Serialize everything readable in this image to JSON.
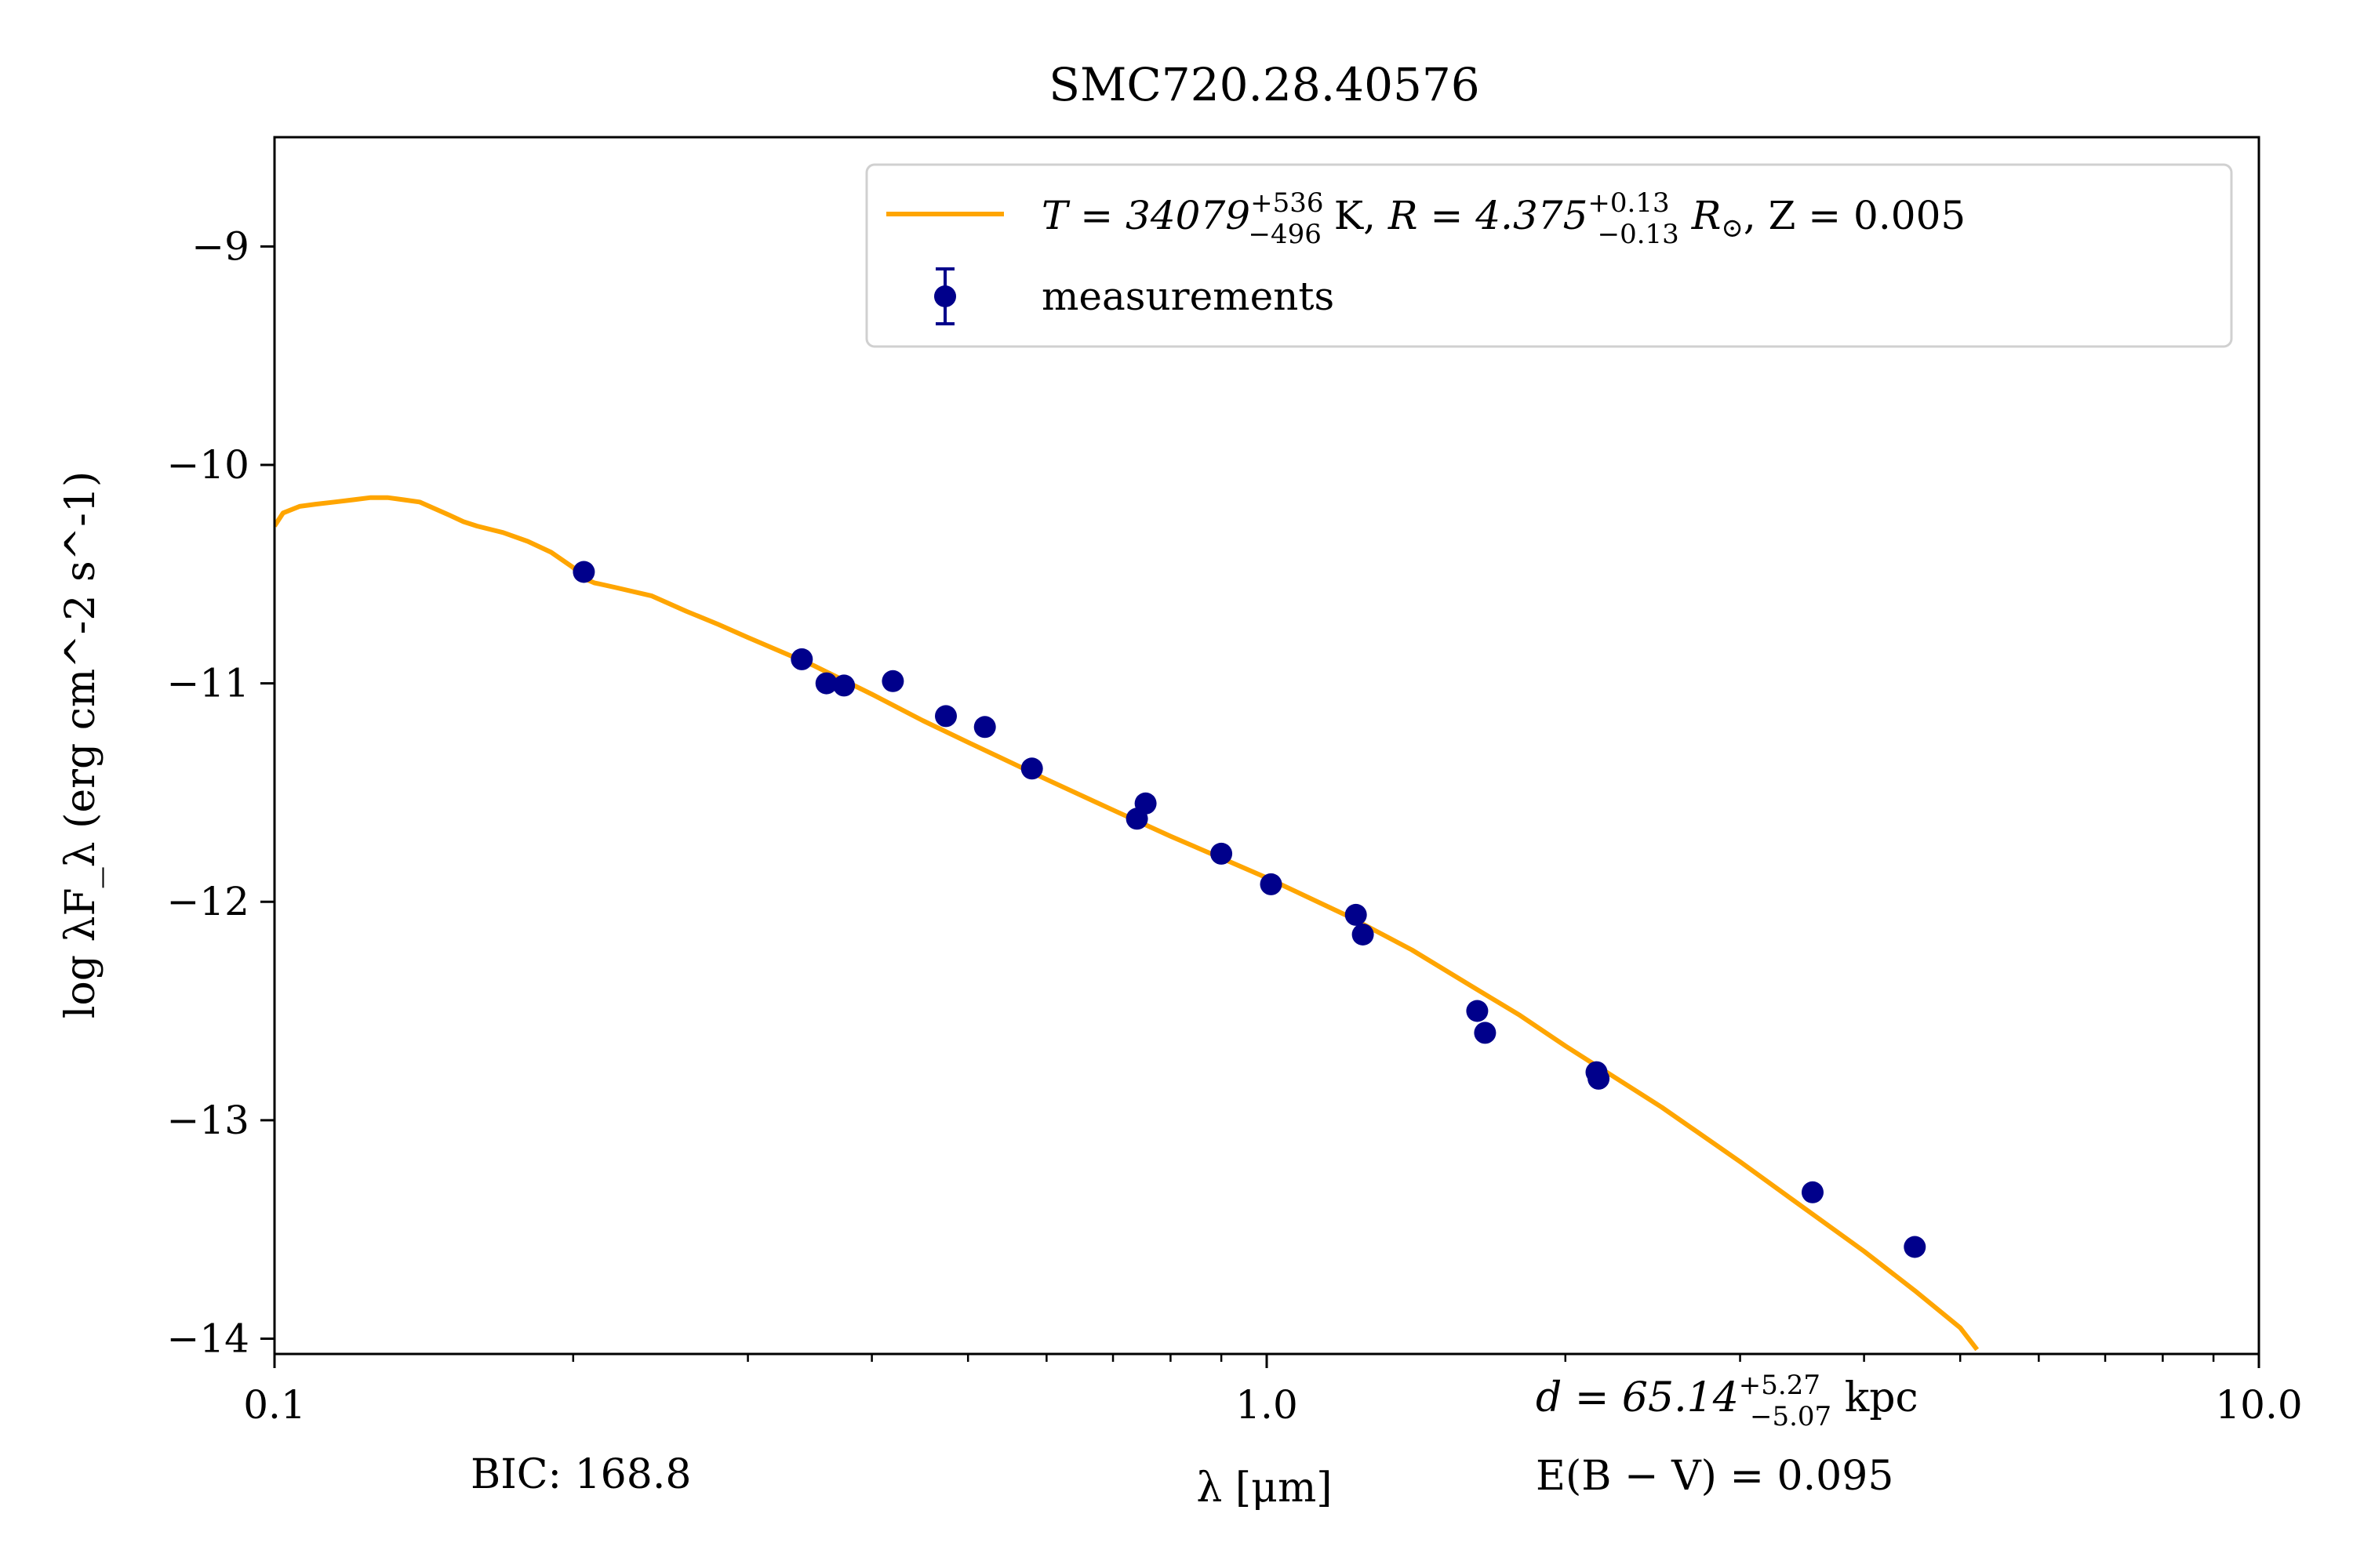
{
  "chart_data": {
    "type": "line",
    "title": "SMC720.28.40576",
    "xlabel": "λ [μm]",
    "ylabel": "log λF_λ (erg cm^-2 s^-1)",
    "x_scale": "log",
    "xlim": [
      0.1,
      10.0
    ],
    "ylim": [
      -14.07,
      -8.5
    ],
    "x_ticks": [
      {
        "value": 0.1,
        "label": "0.1"
      },
      {
        "value": 1.0,
        "label": "1.0"
      },
      {
        "value": 10.0,
        "label": "10.0"
      }
    ],
    "y_ticks": [
      {
        "value": -9,
        "label": "−9"
      },
      {
        "value": -10,
        "label": "−10"
      },
      {
        "value": -11,
        "label": "−11"
      },
      {
        "value": -12,
        "label": "−12"
      },
      {
        "value": -13,
        "label": "−13"
      },
      {
        "value": -14,
        "label": "−14"
      }
    ],
    "grid": false,
    "legend_position": "top-right",
    "legend": {
      "model": {
        "T_prefix": "T = 34079",
        "T_plus": "+536",
        "T_minus": "−496",
        "T_unit": " K, ",
        "R_prefix": "R = 4.375",
        "R_plus": "+0.13",
        "R_minus": "−0.13",
        "R_unit": " R",
        "R_sun": "⊙",
        "Z_text": ", Z = 0.005"
      },
      "measurements": "measurements"
    },
    "annotations": {
      "bic": "BIC: 168.8",
      "distance_prefix": "d = 65.14",
      "distance_plus": "+5.27",
      "distance_minus": "−5.07",
      "distance_unit": " kpc",
      "ebv": "E(B − V) = 0.095"
    },
    "series": [
      {
        "role": "model",
        "color": "#ffa500",
        "x": [
          0.1,
          0.102,
          0.106,
          0.11,
          0.115,
          0.12,
          0.125,
          0.13,
          0.135,
          0.14,
          0.145,
          0.15,
          0.155,
          0.16,
          0.17,
          0.18,
          0.19,
          0.2,
          0.205,
          0.21,
          0.22,
          0.24,
          0.26,
          0.28,
          0.3,
          0.35,
          0.4,
          0.45,
          0.5,
          0.6,
          0.7,
          0.8,
          0.9,
          1.0,
          1.2,
          1.4,
          1.6,
          1.8,
          2.0,
          2.5,
          3.0,
          3.5,
          4.0,
          4.5,
          5.0,
          5.2
        ],
        "y": [
          -10.28,
          -10.22,
          -10.19,
          -10.18,
          -10.17,
          -10.16,
          -10.15,
          -10.15,
          -10.16,
          -10.17,
          -10.2,
          -10.23,
          -10.26,
          -10.28,
          -10.31,
          -10.35,
          -10.4,
          -10.47,
          -10.52,
          -10.54,
          -10.56,
          -10.6,
          -10.67,
          -10.73,
          -10.79,
          -10.92,
          -11.05,
          -11.17,
          -11.27,
          -11.44,
          -11.58,
          -11.7,
          -11.8,
          -11.89,
          -12.06,
          -12.22,
          -12.38,
          -12.52,
          -12.66,
          -12.94,
          -13.19,
          -13.41,
          -13.6,
          -13.78,
          -13.95,
          -14.05
        ]
      },
      {
        "role": "measurements",
        "color": "#00008b",
        "points": [
          {
            "x": 0.205,
            "y": -10.49
          },
          {
            "x": 0.34,
            "y": -10.89
          },
          {
            "x": 0.36,
            "y": -11.0
          },
          {
            "x": 0.375,
            "y": -11.01
          },
          {
            "x": 0.42,
            "y": -10.99
          },
          {
            "x": 0.475,
            "y": -11.15
          },
          {
            "x": 0.52,
            "y": -11.2
          },
          {
            "x": 0.58,
            "y": -11.39
          },
          {
            "x": 0.74,
            "y": -11.62
          },
          {
            "x": 0.755,
            "y": -11.55
          },
          {
            "x": 0.9,
            "y": -11.78
          },
          {
            "x": 1.01,
            "y": -11.92
          },
          {
            "x": 1.23,
            "y": -12.06
          },
          {
            "x": 1.25,
            "y": -12.15
          },
          {
            "x": 1.63,
            "y": -12.5
          },
          {
            "x": 1.66,
            "y": -12.6
          },
          {
            "x": 2.15,
            "y": -12.78
          },
          {
            "x": 2.16,
            "y": -12.81
          },
          {
            "x": 3.55,
            "y": -13.33
          },
          {
            "x": 4.5,
            "y": -13.58
          }
        ]
      }
    ]
  }
}
